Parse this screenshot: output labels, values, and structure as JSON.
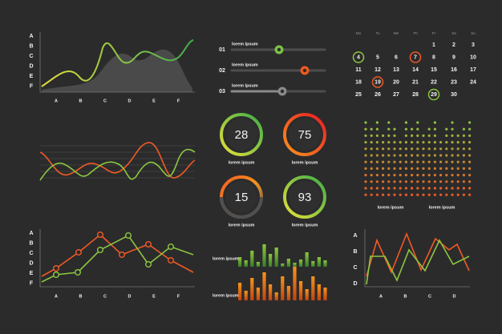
{
  "area_chart": {
    "y_labels": [
      "A",
      "B",
      "C",
      "D",
      "E",
      "F"
    ],
    "x_labels": [
      "A",
      "B",
      "C",
      "D",
      "E",
      "F"
    ]
  },
  "sliders": [
    {
      "number": "01",
      "label": "lorem ipsum",
      "color": "#7dc242"
    },
    {
      "number": "02",
      "label": "lorem ipsum",
      "color": "#f0591f"
    },
    {
      "number": "03",
      "label": "lorem ipsum",
      "color": "#8a8a8a"
    }
  ],
  "calendar": {
    "weekdays": [
      "Mo",
      "Tu",
      "We",
      "Th",
      "Fr",
      "Sa",
      "Su"
    ],
    "days": [
      1,
      2,
      3,
      4,
      5,
      6,
      7,
      8,
      9,
      10,
      11,
      12,
      13,
      14,
      15,
      16,
      17,
      18,
      19,
      20,
      21,
      22,
      23,
      24,
      25,
      26,
      27,
      28,
      29,
      30
    ],
    "highlights": [
      {
        "day": 4,
        "color": "#8cc63f"
      },
      {
        "day": 7,
        "color": "#f15a24"
      },
      {
        "day": 19,
        "color": "#f15a24"
      },
      {
        "day": 29,
        "color": "#8cc63f"
      }
    ]
  },
  "gauges": [
    {
      "value": 28,
      "label": "lorem ipsum"
    },
    {
      "value": 75,
      "label": "lorem ipsum"
    },
    {
      "value": 15,
      "label": "lorem ipsum"
    },
    {
      "value": 93,
      "label": "lorem ipsum"
    }
  ],
  "dot_matrix": {
    "labels": [
      "lorem ipsum",
      "lorem ipsum"
    ]
  },
  "marker_chart": {
    "y_labels": [
      "A",
      "B",
      "C",
      "D",
      "E",
      "F"
    ],
    "x_labels": [
      "A",
      "B",
      "C",
      "D",
      "E",
      "F"
    ]
  },
  "bar_panel": {
    "labels": [
      "lorem ipsum",
      "lorem ipsum"
    ]
  },
  "zigzag_chart": {
    "y_labels": [
      "A",
      "B",
      "C",
      "D"
    ],
    "x_labels": [
      "A",
      "B",
      "C",
      "D"
    ]
  }
}
